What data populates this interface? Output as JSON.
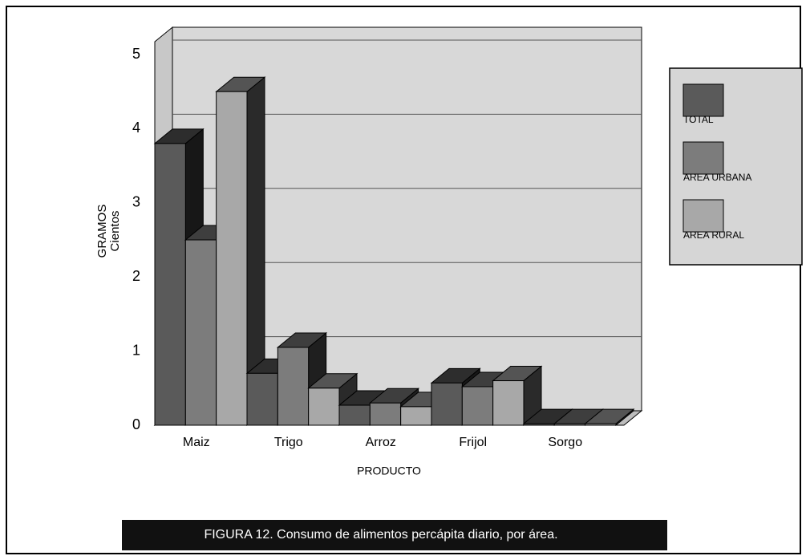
{
  "chart_data": {
    "type": "bar3d",
    "caption": "FIGURA 12. Consumo de alimentos percápita diario, por área.",
    "ylabel": "GRAMOS",
    "ylabel_unit": "Cientos",
    "xlabel": "PRODUCTO",
    "categories": [
      "Maiz",
      "Trigo",
      "Arroz",
      "Frijol",
      "Sorgo"
    ],
    "series": [
      {
        "name": "TOTAL",
        "color": "#5a5a5a",
        "values": [
          3.8,
          0.7,
          0.27,
          0.57,
          0.02
        ]
      },
      {
        "name": "AREA URBANA",
        "color": "#7c7c7c",
        "values": [
          2.5,
          1.05,
          0.3,
          0.52,
          0.02
        ]
      },
      {
        "name": "AREA RURAL",
        "color": "#a8a8a8",
        "values": [
          4.5,
          0.5,
          0.25,
          0.6,
          0.02
        ]
      }
    ],
    "ylim": [
      0,
      5
    ],
    "yticks": [
      0,
      1,
      2,
      3,
      4,
      5
    ],
    "grid": true,
    "legend": "right"
  }
}
